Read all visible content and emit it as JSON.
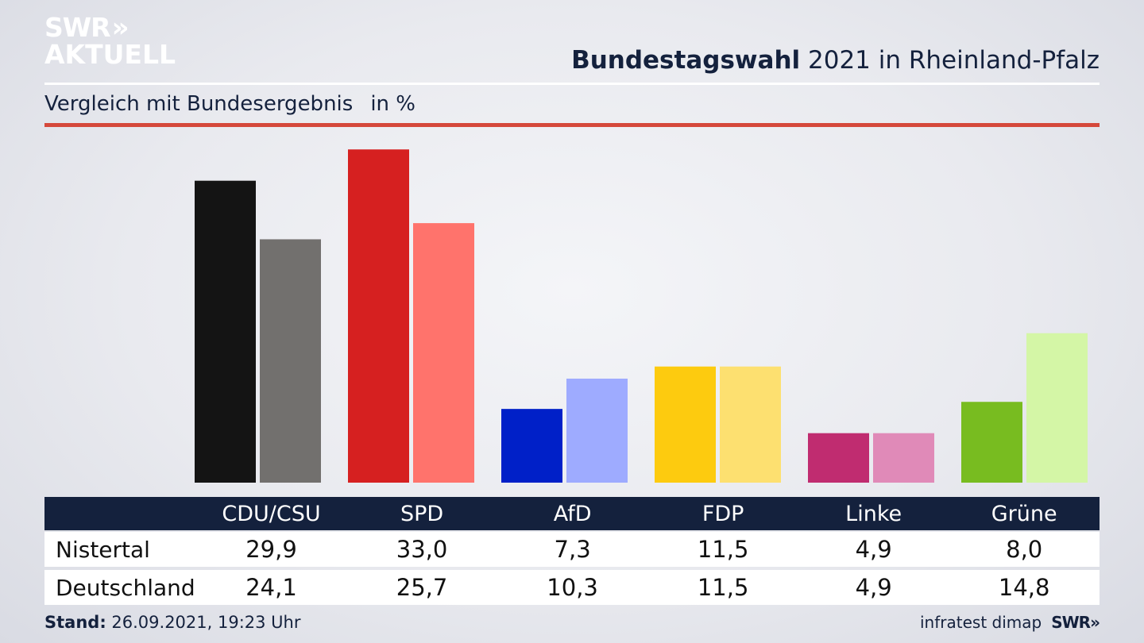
{
  "brand": {
    "logo_line1": "SWR",
    "logo_line2": "AKTUELL",
    "logo_arrows": "»",
    "footer_logo": "SWR»"
  },
  "header": {
    "title_bold": "Bundestagswahl",
    "title_rest": " 2021 in Rheinland-Pfalz",
    "subtitle": "Vergleich mit Bundesergebnis",
    "unit": "in %"
  },
  "footer": {
    "stand_label": "Stand:",
    "stand_value": " 26.09.2021, 19:23 Uhr",
    "source": "infratest dimap"
  },
  "colors": {
    "accent_rule": "#d5483b",
    "header_bg": "#14213d"
  },
  "chart_data": {
    "type": "bar",
    "title": "Bundestagswahl 2021 in Rheinland-Pfalz",
    "subtitle": "Vergleich mit Bundesergebnis in %",
    "categories": [
      "CDU/CSU",
      "SPD",
      "AfD",
      "FDP",
      "Linke",
      "Grüne"
    ],
    "ylim": [
      0,
      35
    ],
    "grid": false,
    "series": [
      {
        "name": "Nistertal",
        "values": [
          29.9,
          33.0,
          7.3,
          11.5,
          4.9,
          8.0
        ],
        "labels": [
          "29,9",
          "33,0",
          "7,3",
          "11,5",
          "4,9",
          "8,0"
        ],
        "colors": [
          "#141414",
          "#d62020",
          "#0020c8",
          "#fdcb0f",
          "#c02c70",
          "#78bc20"
        ]
      },
      {
        "name": "Deutschland",
        "values": [
          24.1,
          25.7,
          10.3,
          11.5,
          4.9,
          14.8
        ],
        "labels": [
          "24,1",
          "25,7",
          "10,3",
          "11,5",
          "4,9",
          "14,8"
        ],
        "colors": [
          "#72706e",
          "#ff736c",
          "#9eabff",
          "#fde070",
          "#e08ab8",
          "#d4f6a6"
        ]
      }
    ]
  }
}
